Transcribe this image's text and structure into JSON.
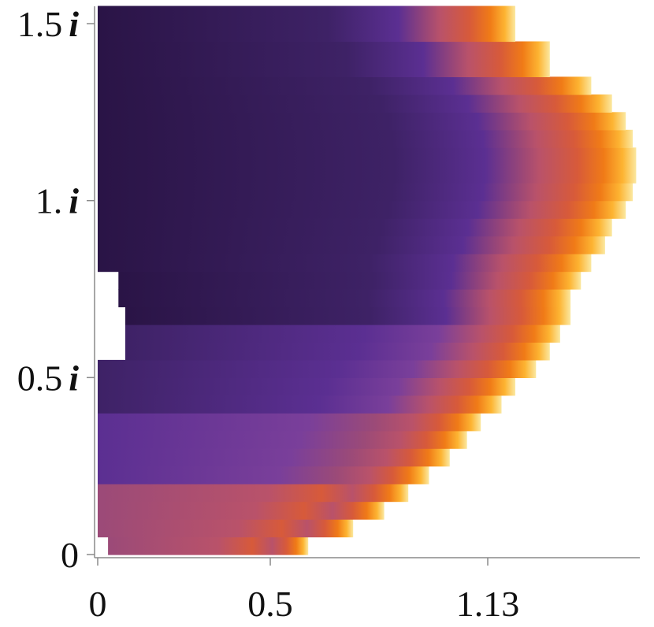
{
  "chart_data": {
    "type": "heatmap",
    "title": "",
    "xlabel": "",
    "ylabel": "",
    "xlim": [
      0,
      1.25
    ],
    "ylim": [
      0,
      1.55
    ],
    "x_ticks": [
      {
        "value": 0,
        "label": "0"
      },
      {
        "value": 0.5,
        "label": "0.5"
      },
      {
        "value": 1.13,
        "label": "1.13"
      }
    ],
    "y_ticks": [
      {
        "value": 0,
        "label": "0",
        "suffix": ""
      },
      {
        "value": 0.5,
        "label": "0.5",
        "suffix": "i"
      },
      {
        "value": 1.0,
        "label": "1.",
        "suffix": "i"
      },
      {
        "value": 1.5,
        "label": "1.5",
        "suffix": "i"
      }
    ],
    "colormap": [
      "#0d0221",
      "#2a1446",
      "#3e2266",
      "#5b2f92",
      "#7a3f9a",
      "#9b4a78",
      "#b9526a",
      "#d75a3a",
      "#f07b17",
      "#fdb432",
      "#fbe8a0"
    ],
    "grid": false,
    "rows": [
      {
        "y0": 0.0,
        "y1": 0.05,
        "x_start": 0.03,
        "x_end": 0.61
      },
      {
        "y0": 0.05,
        "y1": 0.1,
        "x_start": 0.0,
        "x_end": 0.74
      },
      {
        "y0": 0.1,
        "y1": 0.15,
        "x_start": 0.0,
        "x_end": 0.83
      },
      {
        "y0": 0.15,
        "y1": 0.2,
        "x_start": 0.0,
        "x_end": 0.9
      },
      {
        "y0": 0.2,
        "y1": 0.25,
        "x_start": 0.0,
        "x_end": 0.96
      },
      {
        "y0": 0.25,
        "y1": 0.3,
        "x_start": 0.0,
        "x_end": 1.02
      },
      {
        "y0": 0.3,
        "y1": 0.35,
        "x_start": 0.0,
        "x_end": 1.07
      },
      {
        "y0": 0.35,
        "y1": 0.4,
        "x_start": 0.0,
        "x_end": 1.11
      },
      {
        "y0": 0.4,
        "y1": 0.45,
        "x_start": 0.0,
        "x_end": 1.17
      },
      {
        "y0": 0.45,
        "y1": 0.5,
        "x_start": 0.0,
        "x_end": 1.21
      },
      {
        "y0": 0.5,
        "y1": 0.55,
        "x_start": 0.0,
        "x_end": 1.27
      },
      {
        "y0": 0.55,
        "y1": 0.6,
        "x_start": 0.08,
        "x_end": 1.31
      },
      {
        "y0": 0.6,
        "y1": 0.65,
        "x_start": 0.08,
        "x_end": 1.34
      },
      {
        "y0": 0.65,
        "y1": 0.7,
        "x_start": 0.08,
        "x_end": 1.37
      },
      {
        "y0": 0.7,
        "y1": 0.75,
        "x_start": 0.06,
        "x_end": 1.37
      },
      {
        "y0": 0.75,
        "y1": 0.8,
        "x_start": 0.06,
        "x_end": 1.4
      },
      {
        "y0": 0.8,
        "y1": 0.85,
        "x_start": 0.0,
        "x_end": 1.43
      },
      {
        "y0": 0.85,
        "y1": 0.9,
        "x_start": 0.0,
        "x_end": 1.47
      },
      {
        "y0": 0.9,
        "y1": 0.95,
        "x_start": 0.0,
        "x_end": 1.49
      },
      {
        "y0": 0.95,
        "y1": 1.0,
        "x_start": 0.0,
        "x_end": 1.53
      },
      {
        "y0": 1.0,
        "y1": 1.05,
        "x_start": 0.0,
        "x_end": 1.55
      },
      {
        "y0": 1.05,
        "y1": 1.1,
        "x_start": 0.0,
        "x_end": 1.56
      },
      {
        "y0": 1.1,
        "y1": 1.15,
        "x_start": 0.0,
        "x_end": 1.56
      },
      {
        "y0": 1.15,
        "y1": 1.2,
        "x_start": 0.0,
        "x_end": 1.55
      },
      {
        "y0": 1.2,
        "y1": 1.25,
        "x_start": 0.0,
        "x_end": 1.53
      },
      {
        "y0": 1.25,
        "y1": 1.3,
        "x_start": 0.0,
        "x_end": 1.49
      },
      {
        "y0": 1.3,
        "y1": 1.35,
        "x_start": 0.0,
        "x_end": 1.43
      },
      {
        "y0": 1.35,
        "y1": 1.4,
        "x_start": 0.0,
        "x_end": 1.31
      },
      {
        "y0": 1.4,
        "y1": 1.45,
        "x_start": 0.0,
        "x_end": 1.31
      },
      {
        "y0": 1.45,
        "y1": 1.5,
        "x_start": 0.0,
        "x_end": 1.21
      },
      {
        "y0": 1.5,
        "y1": 1.55,
        "x_start": 0.0,
        "x_end": 1.21
      }
    ]
  }
}
